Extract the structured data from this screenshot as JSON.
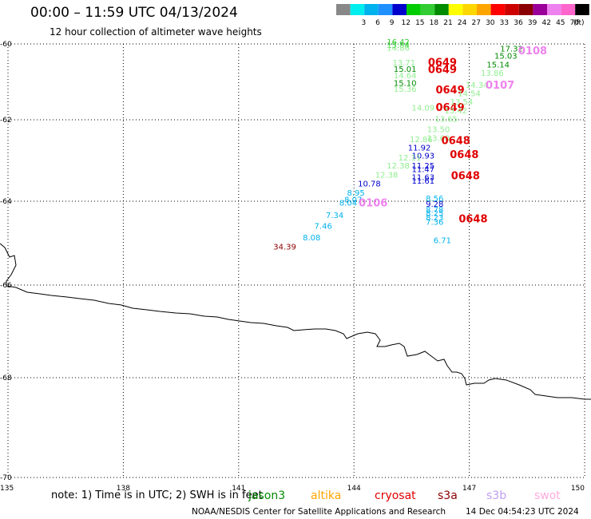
{
  "header": {
    "title": "00:00 – 11:59 UTC 04/13/2024",
    "subtitle": "12 hour collection of altimeter wave heights"
  },
  "legend": {
    "unit": "(ft)",
    "bins": [
      {
        "label": "",
        "color": "#888888"
      },
      {
        "label": "3",
        "color": "#00eeee"
      },
      {
        "label": "6",
        "color": "#00b2ee"
      },
      {
        "label": "9",
        "color": "#1e90ff"
      },
      {
        "label": "12",
        "color": "#0000cd"
      },
      {
        "label": "15",
        "color": "#00cd00"
      },
      {
        "label": "18",
        "color": "#32cd32"
      },
      {
        "label": "21",
        "color": "#008b00"
      },
      {
        "label": "24",
        "color": "#ffff00"
      },
      {
        "label": "27",
        "color": "#ffd700"
      },
      {
        "label": "30",
        "color": "#ffa500"
      },
      {
        "label": "33",
        "color": "#ff0000"
      },
      {
        "label": "36",
        "color": "#cd0000"
      },
      {
        "label": "39",
        "color": "#8b0000"
      },
      {
        "label": "42",
        "color": "#9a0099"
      },
      {
        "label": "45",
        "color": "#ee82ee"
      },
      {
        "label": "70",
        "color": "#ff66cc"
      },
      {
        "label": "",
        "color": "#000000"
      }
    ]
  },
  "map": {
    "lon_labels": [
      "135",
      "138",
      "141",
      "144",
      "147",
      "150"
    ],
    "lat_labels": [
      "-60",
      "-62",
      "-64",
      "-66",
      "-68",
      "-70"
    ],
    "observations": [
      {
        "text": "16.42",
        "lon": 145.15,
        "lat": -60.02,
        "color": "#32cd32"
      },
      {
        "text": "15.84",
        "lon": 145.15,
        "lat": -60.1,
        "color": "#32cd32"
      },
      {
        "text": "14.86",
        "lon": 145.15,
        "lat": -60.18,
        "color": "#90ee90"
      },
      {
        "text": "13.71",
        "lon": 145.3,
        "lat": -60.57,
        "color": "#90ee90"
      },
      {
        "text": "15.01",
        "lon": 145.33,
        "lat": -60.74,
        "color": "#008b00"
      },
      {
        "text": "14.64",
        "lon": 145.33,
        "lat": -60.9,
        "color": "#90ee90"
      },
      {
        "text": "15.10",
        "lon": 145.33,
        "lat": -61.1,
        "color": "#008b00"
      },
      {
        "text": "15.36",
        "lon": 145.33,
        "lat": -61.26,
        "color": "#90ee90"
      },
      {
        "text": "0649",
        "lon": 146.3,
        "lat": -60.58,
        "color": "#e00000"
      },
      {
        "text": "0649",
        "lon": 146.3,
        "lat": -60.77,
        "color": "#e00000"
      },
      {
        "text": "0649",
        "lon": 146.5,
        "lat": -61.3,
        "color": "#e00000"
      },
      {
        "text": "0649",
        "lon": 146.5,
        "lat": -61.77,
        "color": "#e00000"
      },
      {
        "text": "17.32",
        "lon": 148.1,
        "lat": -60.2,
        "color": "#008b00"
      },
      {
        "text": "15.03",
        "lon": 147.95,
        "lat": -60.39,
        "color": "#008b00"
      },
      {
        "text": "15.14",
        "lon": 147.75,
        "lat": -60.62,
        "color": "#008b00"
      },
      {
        "text": "13.86",
        "lon": 147.6,
        "lat": -60.84,
        "color": "#90ee90"
      },
      {
        "text": "14.34",
        "lon": 147.2,
        "lat": -61.16,
        "color": "#90ee90"
      },
      {
        "text": "14.54",
        "lon": 147.0,
        "lat": -61.38,
        "color": "#90ee90"
      },
      {
        "text": "13.54",
        "lon": 146.8,
        "lat": -61.6,
        "color": "#90ee90"
      },
      {
        "text": "13.42",
        "lon": 146.65,
        "lat": -61.83,
        "color": "#90ee90"
      },
      {
        "text": "13.65",
        "lon": 146.4,
        "lat": -62.05,
        "color": "#90ee90"
      },
      {
        "text": "0108",
        "lon": 148.65,
        "lat": -60.27,
        "color": "#ee82ee"
      },
      {
        "text": "0107",
        "lon": 147.8,
        "lat": -61.18,
        "color": "#ee82ee"
      },
      {
        "text": "14.09",
        "lon": 145.8,
        "lat": -61.76,
        "color": "#90ee90"
      },
      {
        "text": "13.50",
        "lon": 146.2,
        "lat": -62.3,
        "color": "#90ee90"
      },
      {
        "text": "12.86",
        "lon": 145.75,
        "lat": -62.55,
        "color": "#90ee90"
      },
      {
        "text": "13.60",
        "lon": 146.2,
        "lat": -62.52,
        "color": "#90ee90"
      },
      {
        "text": "0648",
        "lon": 146.65,
        "lat": -62.6,
        "color": "#e00000"
      },
      {
        "text": "11.92",
        "lon": 145.7,
        "lat": -62.75,
        "color": "#0000cd"
      },
      {
        "text": "10.93",
        "lon": 145.8,
        "lat": -62.95,
        "color": "#0000cd"
      },
      {
        "text": "12.11",
        "lon": 145.45,
        "lat": -63.0,
        "color": "#90ee90"
      },
      {
        "text": "0648",
        "lon": 146.87,
        "lat": -62.94,
        "color": "#e00000"
      },
      {
        "text": "12.38",
        "lon": 145.15,
        "lat": -63.2,
        "color": "#90ee90"
      },
      {
        "text": "11.25",
        "lon": 145.8,
        "lat": -63.2,
        "color": "#0000cd"
      },
      {
        "text": "11.47",
        "lon": 145.8,
        "lat": -63.28,
        "color": "#0000cd"
      },
      {
        "text": "12.38",
        "lon": 144.85,
        "lat": -63.42,
        "color": "#90ee90"
      },
      {
        "text": "11.63",
        "lon": 145.8,
        "lat": -63.48,
        "color": "#0000cd"
      },
      {
        "text": "11.61",
        "lon": 145.8,
        "lat": -63.57,
        "color": "#0000cd"
      },
      {
        "text": "0648",
        "lon": 146.9,
        "lat": -63.46,
        "color": "#e00000"
      },
      {
        "text": "10.78",
        "lon": 144.4,
        "lat": -63.64,
        "color": "#0000cd"
      },
      {
        "text": "8.95",
        "lon": 144.05,
        "lat": -63.86,
        "color": "#00b2ee"
      },
      {
        "text": "8.04",
        "lon": 143.85,
        "lat": -64.1,
        "color": "#00b2ee"
      },
      {
        "text": "8.07",
        "lon": 143.98,
        "lat": -64.03,
        "color": "#00b2ee"
      },
      {
        "text": "0106",
        "lon": 144.5,
        "lat": -64.12,
        "color": "#ee82ee"
      },
      {
        "text": "8.56",
        "lon": 146.1,
        "lat": -64.0,
        "color": "#00b2ee"
      },
      {
        "text": "9.28",
        "lon": 146.1,
        "lat": -64.13,
        "color": "#0000cd"
      },
      {
        "text": "8.78",
        "lon": 146.1,
        "lat": -64.27,
        "color": "#00b2ee"
      },
      {
        "text": "8.25",
        "lon": 146.1,
        "lat": -64.35,
        "color": "#00b2ee"
      },
      {
        "text": "8.23",
        "lon": 146.1,
        "lat": -64.46,
        "color": "#00b2ee"
      },
      {
        "text": "7.36",
        "lon": 146.1,
        "lat": -64.56,
        "color": "#00b2ee"
      },
      {
        "text": "0648",
        "lon": 147.1,
        "lat": -64.5,
        "color": "#e00000"
      },
      {
        "text": "7.34",
        "lon": 143.5,
        "lat": -64.4,
        "color": "#00b2ee"
      },
      {
        "text": "7.46",
        "lon": 143.2,
        "lat": -64.66,
        "color": "#00b2ee"
      },
      {
        "text": "8.08",
        "lon": 142.9,
        "lat": -64.93,
        "color": "#00b2ee"
      },
      {
        "text": "6.71",
        "lon": 146.3,
        "lat": -65.0,
        "color": "#00b2ee"
      },
      {
        "text": "34.39",
        "lon": 142.2,
        "lat": -65.15,
        "color": "#8b0000"
      }
    ]
  },
  "footer": {
    "note": "note: 1) Time is in UTC; 2) SWH is in feet",
    "satellites": [
      {
        "name": "jason3",
        "color": "#008b00"
      },
      {
        "name": "altika",
        "color": "#ffa500"
      },
      {
        "name": "cryosat",
        "color": "#e00000"
      },
      {
        "name": "s3a",
        "color": "#8b0000"
      },
      {
        "name": "s3b",
        "color": "#c0a0f0"
      },
      {
        "name": "swot",
        "color": "#ffaadd"
      }
    ],
    "credit": "NOAA/NESDIS Center for Satellite Applications and Research",
    "timestamp": "14 Dec 04:54:23 UTC 2024"
  }
}
